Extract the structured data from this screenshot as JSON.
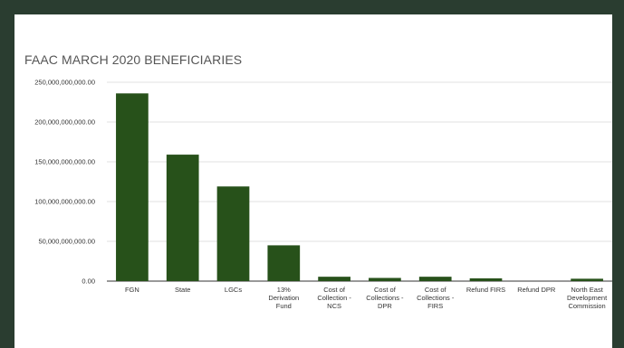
{
  "chart_data": {
    "type": "bar",
    "title": "FAAC MARCH 2020 BENEFICIARIES",
    "xlabel": "",
    "ylabel": "",
    "ylim": [
      0,
      250000000000
    ],
    "yticks": [
      "0.00",
      "50,000,000,000.00",
      "100,000,000,000.00",
      "150,000,000,000.00",
      "200,000,000,000.00",
      "250,000,000,000.00"
    ],
    "grid": true,
    "bar_color": "#27511a",
    "categories": [
      [
        "FGN"
      ],
      [
        "State"
      ],
      [
        "LGCs"
      ],
      [
        "13%",
        "Derivation",
        "Fund"
      ],
      [
        "Cost of",
        "Collection -",
        "NCS"
      ],
      [
        "Cost of",
        "Collections -",
        "DPR"
      ],
      [
        "Cost of",
        "Collections -",
        "FIRS"
      ],
      [
        "Refund FIRS"
      ],
      [
        "Refund DPR"
      ],
      [
        "North East",
        "Development",
        "Commission"
      ]
    ],
    "values": [
      236000000000,
      159000000000,
      119000000000,
      45000000000,
      5500000000,
      4000000000,
      5500000000,
      3500000000,
      0,
      3000000000
    ]
  }
}
